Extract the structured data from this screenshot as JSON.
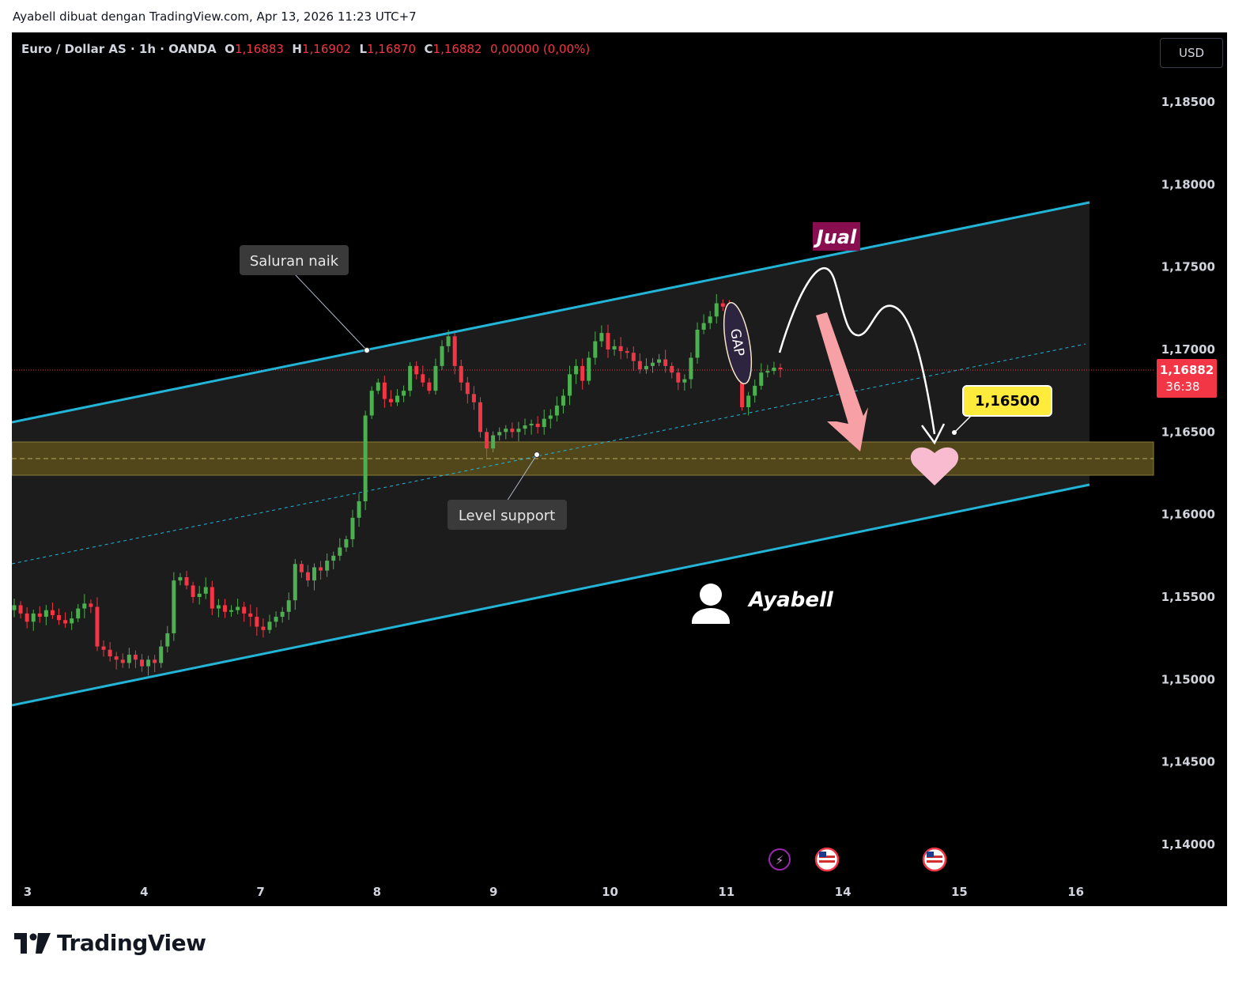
{
  "header": {
    "text": "Ayabell dibuat dengan TradingView.com, Apr 13, 2026 11:23 UTC+7"
  },
  "legend": {
    "symbol": "Euro / Dollar AS · 1h · OANDA",
    "open_label": "O",
    "open": "1,16883",
    "high_label": "H",
    "high": "1,16902",
    "low_label": "L",
    "low": "1,16870",
    "close_label": "C",
    "close": "1,16882",
    "change": "0,00000 (0,00%)"
  },
  "currency_button": "USD",
  "price_label": {
    "price": "1,16882",
    "countdown": "36:38"
  },
  "annotations": {
    "channel_label": "Saluran naik",
    "support_label": "Level support",
    "sell_label": "Jual",
    "gap_label": "GAP",
    "target_label": "1,16500",
    "author": "Ayabell"
  },
  "footer": {
    "brand": "TradingView"
  },
  "colors": {
    "bull": "#4caf50",
    "bear": "#f23645",
    "channel": "#22b5d8",
    "support_zone": "#52471a",
    "sell_box": "#880e4f",
    "target_box": "#ffeb3b",
    "arrow": "#f7a1a7",
    "heart": "#f8bbd0"
  },
  "icons": [
    "lightning-icon",
    "us-flag-icon",
    "us-flag-icon",
    "user-icon",
    "heart-icon",
    "tradingview-logo-icon"
  ],
  "chart_data": {
    "type": "candlestick",
    "y_ticks": [
      "1,18500",
      "1,18000",
      "1,17500",
      "1,17000",
      "1,16500",
      "1,16000",
      "1,15500",
      "1,15000",
      "1,14500",
      "1,14000"
    ],
    "x_ticks": [
      "3",
      "4",
      "7",
      "8",
      "9",
      "10",
      "11",
      "14",
      "15",
      "16"
    ],
    "ylim": [
      1.1375,
      1.1885
    ],
    "current_price": 1.16882,
    "target_price": 1.165,
    "support_zone": [
      1.1623,
      1.1644
    ],
    "channel": {
      "upper": [
        [
          0,
          1.1657
        ],
        [
          9.28,
          1.179
        ]
      ],
      "lower": [
        [
          0,
          1.1484
        ],
        [
          9.28,
          1.1617
        ]
      ],
      "mid": [
        [
          0,
          1.157
        ],
        [
          9.28,
          1.1703
        ]
      ]
    },
    "close_series": [
      1.1545,
      1.154,
      1.1535,
      1.154,
      1.1538,
      1.1542,
      1.1539,
      1.1536,
      1.1534,
      1.1537,
      1.1543,
      1.1546,
      1.1544,
      1.152,
      1.1518,
      1.1514,
      1.1512,
      1.151,
      1.1515,
      1.1512,
      1.1508,
      1.1512,
      1.151,
      1.152,
      1.1528,
      1.156,
      1.1562,
      1.1557,
      1.155,
      1.1552,
      1.1556,
      1.1543,
      1.1545,
      1.1541,
      1.1542,
      1.1544,
      1.154,
      1.1538,
      1.1532,
      1.153,
      1.1535,
      1.1538,
      1.1541,
      1.1548,
      1.157,
      1.1565,
      1.156,
      1.1568,
      1.1566,
      1.1572,
      1.1575,
      1.158,
      1.1585,
      1.1598,
      1.1608,
      1.166,
      1.1675,
      1.168,
      1.167,
      1.1668,
      1.1672,
      1.1675,
      1.169,
      1.1685,
      1.168,
      1.1675,
      1.169,
      1.1702,
      1.1708,
      1.169,
      1.168,
      1.1673,
      1.1668,
      1.165,
      1.164,
      1.1648,
      1.165,
      1.1652,
      1.165,
      1.1652,
      1.1654,
      1.1655,
      1.1653,
      1.1658,
      1.166,
      1.1666,
      1.1672,
      1.1685,
      1.169,
      1.1681,
      1.1695,
      1.1705,
      1.171,
      1.17,
      1.1702,
      1.1699,
      1.1698,
      1.1693,
      1.1688,
      1.169,
      1.1692,
      1.1694,
      1.169,
      1.1686,
      1.168,
      1.1682,
      1.1695,
      1.1712,
      1.1716,
      1.172,
      1.1728,
      1.1726,
      1.1722,
      1.1712,
      1.1665,
      1.1672,
      1.1678,
      1.1686,
      1.1687,
      1.1689,
      1.1688
    ]
  }
}
